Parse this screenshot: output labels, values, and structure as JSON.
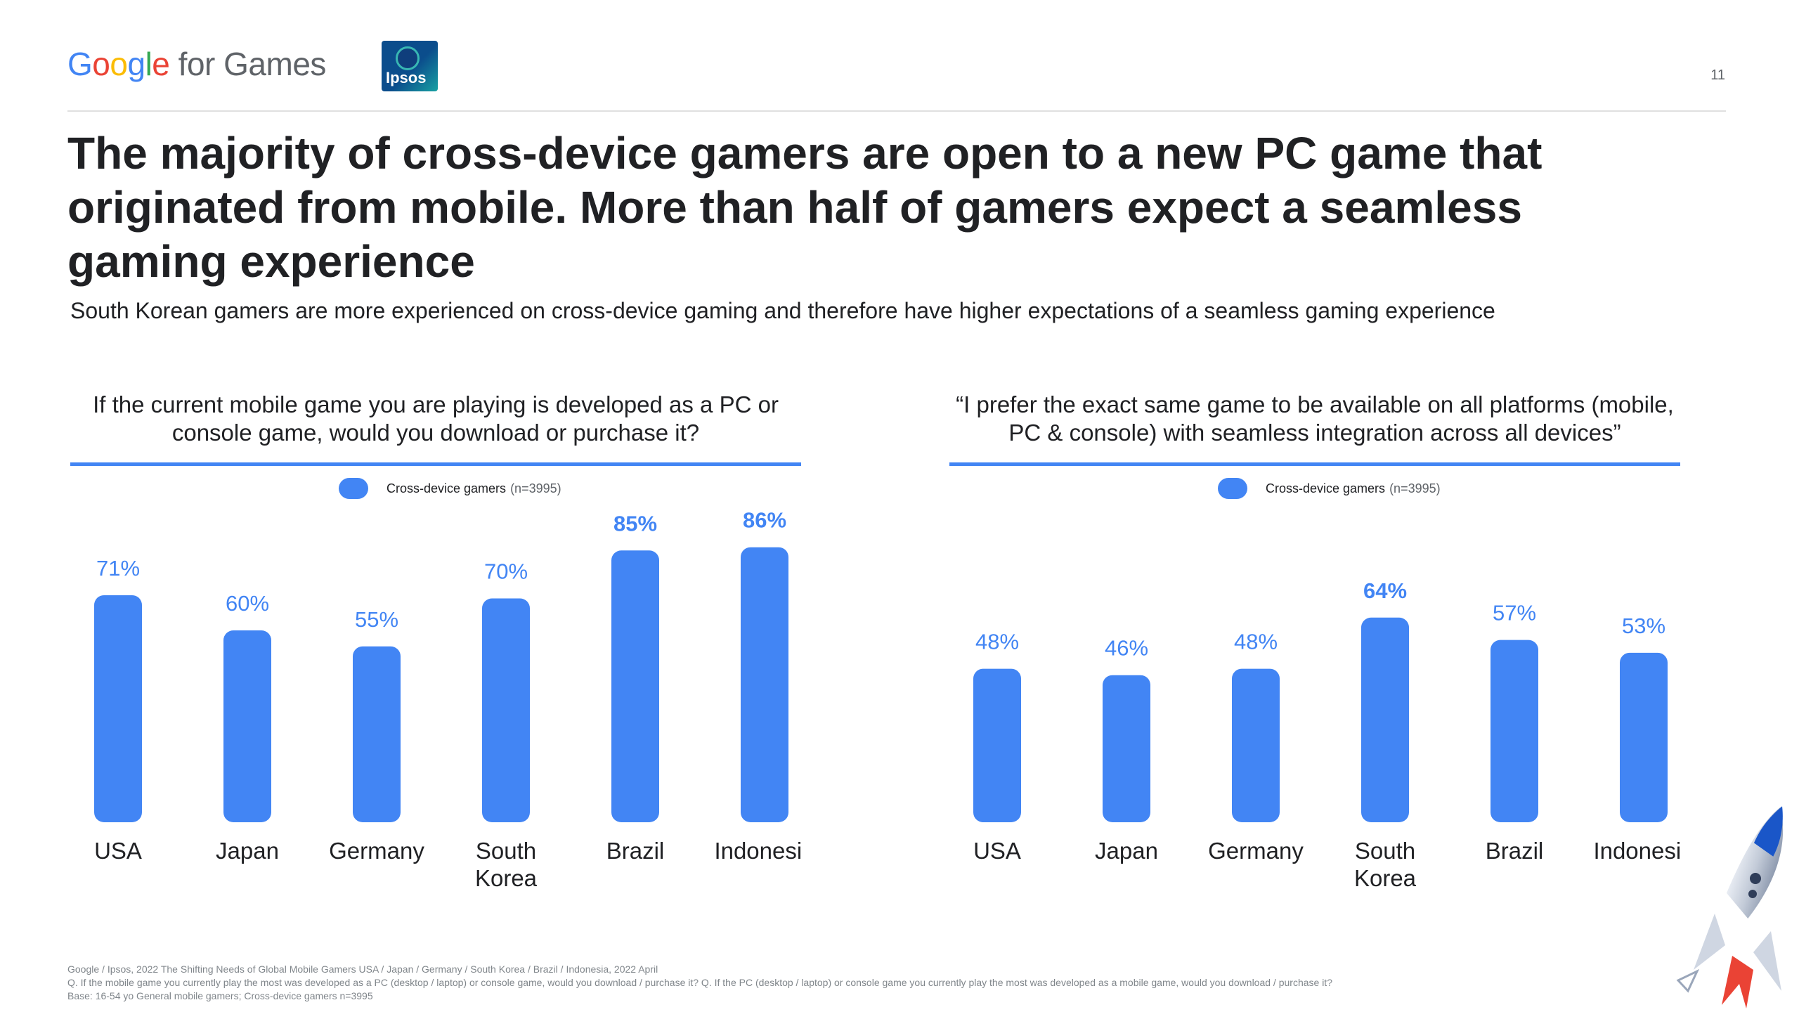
{
  "brand": {
    "word": "Google",
    "suffix": " for Games",
    "partner": "Ipsos"
  },
  "page_number": "11",
  "headline": "The majority of cross-device gamers are open to a new PC game that originated from mobile. More than half of gamers expect a seamless gaming experience",
  "subheadline": "South Korean gamers are more experienced on cross-device gaming and therefore have higher expectations of a seamless gaming experience",
  "colors": {
    "accent": "#4285f4",
    "label_blue": "#4285f4",
    "text": "#202124"
  },
  "chart_data": [
    {
      "type": "bar",
      "title": "If the current mobile game you are playing is developed as a PC or console game, would you download or purchase it?",
      "legend": {
        "label": "Cross-device gamers",
        "n": "(n=3995)"
      },
      "categories": [
        "USA",
        "Japan",
        "Germany",
        "South Korea",
        "Brazil",
        "Indonesia"
      ],
      "category_lines": [
        [
          "USA"
        ],
        [
          "Japan"
        ],
        [
          "Germany"
        ],
        [
          "South",
          "Korea"
        ],
        [
          "Brazil"
        ],
        [
          "Indonesia"
        ]
      ],
      "values": [
        71,
        60,
        55,
        70,
        85,
        86
      ],
      "value_labels": [
        "71%",
        "60%",
        "55%",
        "70%",
        "85%",
        "86%"
      ],
      "highlight": [
        false,
        false,
        false,
        false,
        true,
        true
      ],
      "ylim": [
        0,
        100
      ]
    },
    {
      "type": "bar",
      "title": "“I prefer the exact same game to be available on all platforms (mobile, PC & console) with seamless integration across all devices”",
      "legend": {
        "label": "Cross-device gamers",
        "n": "(n=3995)"
      },
      "categories": [
        "USA",
        "Japan",
        "Germany",
        "South Korea",
        "Brazil",
        "Indonesia"
      ],
      "category_lines": [
        [
          "USA"
        ],
        [
          "Japan"
        ],
        [
          "Germany"
        ],
        [
          "South",
          "Korea"
        ],
        [
          "Brazil"
        ],
        [
          "Indonesia"
        ]
      ],
      "values": [
        48,
        46,
        48,
        64,
        57,
        53
      ],
      "value_labels": [
        "48%",
        "46%",
        "48%",
        "64%",
        "57%",
        "53%"
      ],
      "highlight": [
        false,
        false,
        false,
        true,
        false,
        false
      ],
      "ylim": [
        0,
        100
      ]
    }
  ],
  "footnote": {
    "source": "Google / Ipsos, 2022 The Shifting Needs of Global Mobile Gamers USA / Japan / Germany / South Korea / Brazil / Indonesia, 2022 April",
    "question": "Q. If the mobile game you currently play the most was developed as a PC (desktop / laptop) or console game, would you download / purchase it? Q. If the PC (desktop / laptop) or console game you currently play the most was developed as a mobile game, would you download / purchase it?",
    "base": "Base: 16-54 yo General mobile gamers; Cross-device gamers n=3995"
  }
}
